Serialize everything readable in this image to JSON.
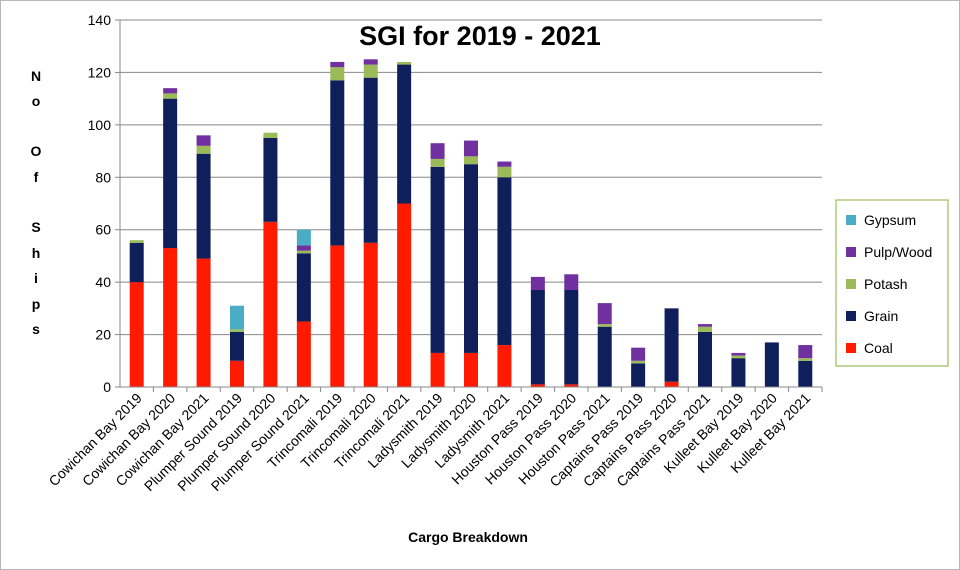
{
  "chart_data": {
    "type": "bar",
    "stacked": true,
    "title": "SGI for 2019 - 2021",
    "xlabel": "Cargo Breakdown",
    "ylabel": "No Of Ships",
    "ylabel_chars": [
      "N",
      "o",
      "O",
      "f",
      "S",
      "h",
      "i",
      "p",
      "s"
    ],
    "ylim": [
      0,
      140
    ],
    "yticks": [
      0,
      20,
      40,
      60,
      80,
      100,
      120,
      140
    ],
    "grid": true,
    "legend_position": "right",
    "categories": [
      "Cowichan Bay 2019",
      "Cowichan Bay 2020",
      "Cowichan Bay 2021",
      "Plumper Sound 2019",
      "Plumper Sound 2020",
      "Plumper Sound 2021",
      "Trincomali 2019",
      "Trincomali 2020",
      "Trincomali 2021",
      "Ladysmith 2019",
      "Ladysmith 2020",
      "Ladysmith 2021",
      "Houston Pass 2019",
      "Houston Pass 2020",
      "Houston Pass 2021",
      "Captains Pass 2019",
      "Captains Pass 2020",
      "Captains Pass 2021",
      "Kulleet Bay 2019",
      "Kulleet Bay 2020",
      "Kulleet Bay 2021"
    ],
    "series": [
      {
        "name": "Coal",
        "color": "#ff1a00",
        "values": [
          40,
          53,
          49,
          10,
          63,
          25,
          54,
          55,
          70,
          13,
          13,
          16,
          1,
          1,
          0,
          0,
          2,
          0,
          0,
          0,
          0
        ]
      },
      {
        "name": "Grain",
        "color": "#0f1f5c",
        "values": [
          15,
          57,
          40,
          11,
          32,
          26,
          63,
          63,
          53,
          71,
          72,
          64,
          36,
          36,
          23,
          9,
          28,
          21,
          11,
          17,
          10
        ]
      },
      {
        "name": "Potash",
        "color": "#9bbb59",
        "values": [
          1,
          2,
          3,
          1,
          2,
          1,
          5,
          5,
          1,
          3,
          3,
          4,
          0,
          0,
          1,
          1,
          0,
          2,
          1,
          0,
          1
        ]
      },
      {
        "name": "Pulp/Wood",
        "color": "#7030a0",
        "values": [
          0,
          2,
          4,
          0,
          0,
          2,
          2,
          2,
          0,
          6,
          6,
          2,
          5,
          6,
          8,
          5,
          0,
          1,
          1,
          0,
          5
        ]
      },
      {
        "name": "Gypsum",
        "color": "#4bacc6",
        "values": [
          0,
          0,
          0,
          9,
          0,
          6,
          0,
          0,
          0,
          0,
          0,
          0,
          0,
          0,
          0,
          0,
          0,
          0,
          0,
          0,
          0
        ]
      }
    ],
    "legend_order": [
      "Gypsum",
      "Pulp/Wood",
      "Potash",
      "Grain",
      "Coal"
    ]
  }
}
